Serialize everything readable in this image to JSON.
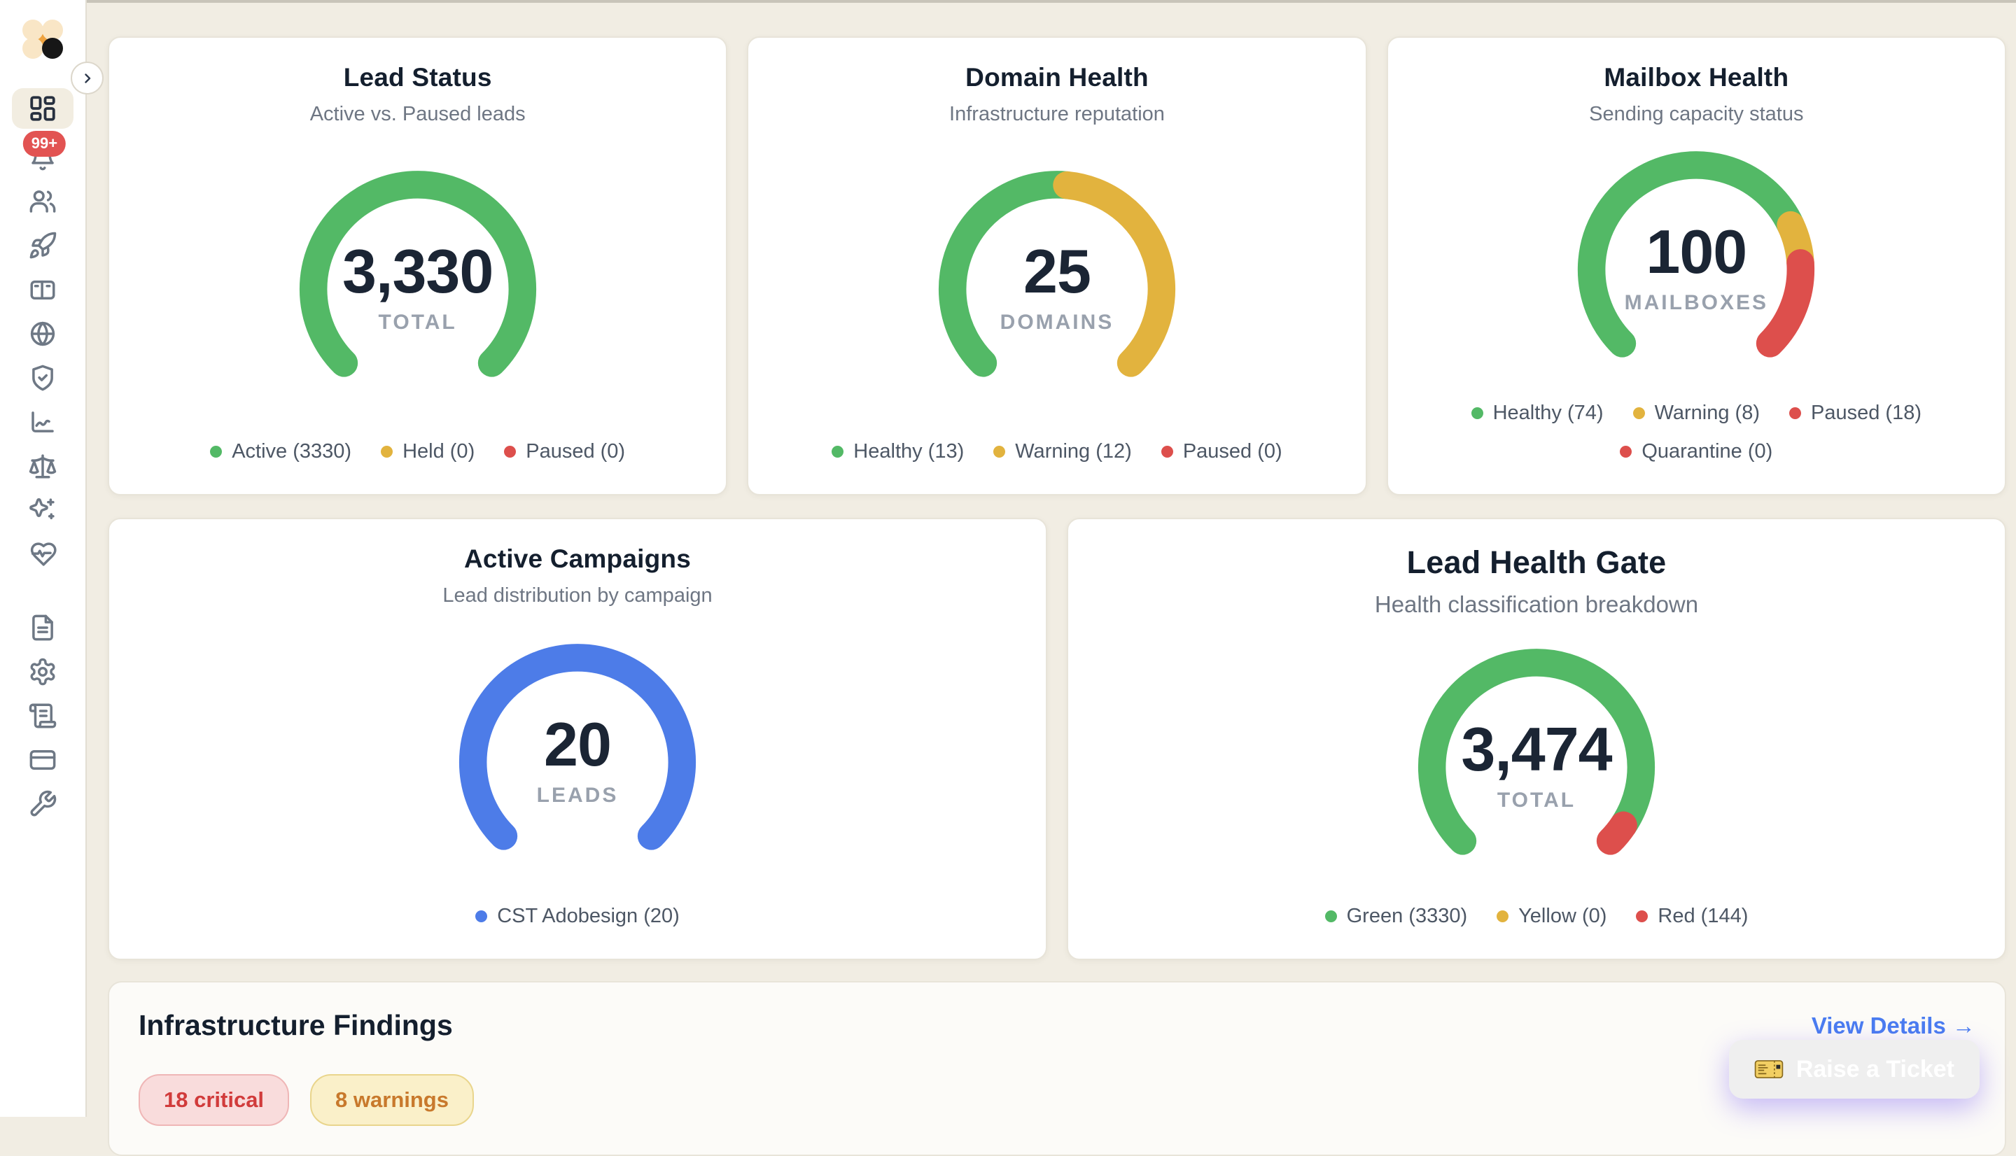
{
  "sidebar": {
    "notification_badge": "99+",
    "items": [
      {
        "id": "dashboard",
        "icon": "dashboard",
        "active": true
      },
      {
        "id": "notifications",
        "icon": "bell",
        "badge": "99+"
      },
      {
        "id": "contacts",
        "icon": "users"
      },
      {
        "id": "campaigns",
        "icon": "rocket"
      },
      {
        "id": "accounts",
        "icon": "notebook"
      },
      {
        "id": "domains",
        "icon": "globe"
      },
      {
        "id": "security",
        "icon": "shield-check"
      },
      {
        "id": "analytics",
        "icon": "chart-line"
      },
      {
        "id": "compliance",
        "icon": "scale"
      },
      {
        "id": "ai-tools",
        "icon": "sparkles"
      },
      {
        "id": "health",
        "icon": "heart-pulse"
      },
      {
        "id": "documents",
        "icon": "file-text",
        "group_gap": true
      },
      {
        "id": "settings",
        "icon": "gear"
      },
      {
        "id": "invoices",
        "icon": "scroll-text"
      },
      {
        "id": "billing",
        "icon": "credit-card"
      },
      {
        "id": "tools",
        "icon": "wrench"
      }
    ]
  },
  "cards": [
    {
      "id": "lead-status",
      "row": 0,
      "title": "Lead Status",
      "subtitle": "Active vs. Paused leads",
      "center_value": "3,330",
      "center_label": "TOTAL",
      "segments": [
        {
          "label": "Active",
          "value": 3330,
          "color": "#53b966"
        },
        {
          "label": "Held",
          "value": 0,
          "color": "#e2b33e"
        },
        {
          "label": "Paused",
          "value": 0,
          "color": "#dd4f4c"
        }
      ],
      "legend": [
        {
          "label": "Active (3330)",
          "color": "#53b966"
        },
        {
          "label": "Held (0)",
          "color": "#e2b33e"
        },
        {
          "label": "Paused (0)",
          "color": "#dd4f4c"
        }
      ]
    },
    {
      "id": "domain-health",
      "row": 0,
      "title": "Domain Health",
      "subtitle": "Infrastructure reputation",
      "center_value": "25",
      "center_label": "DOMAINS",
      "segments": [
        {
          "label": "Healthy",
          "value": 13,
          "color": "#53b966"
        },
        {
          "label": "Warning",
          "value": 12,
          "color": "#e2b33e"
        },
        {
          "label": "Paused",
          "value": 0,
          "color": "#dd4f4c"
        }
      ],
      "legend": [
        {
          "label": "Healthy (13)",
          "color": "#53b966"
        },
        {
          "label": "Warning (12)",
          "color": "#e2b33e"
        },
        {
          "label": "Paused (0)",
          "color": "#dd4f4c"
        }
      ]
    },
    {
      "id": "mailbox-health",
      "row": 0,
      "title": "Mailbox Health",
      "subtitle": "Sending capacity status",
      "center_value": "100",
      "center_label": "MAILBOXES",
      "segments": [
        {
          "label": "Healthy",
          "value": 74,
          "color": "#53b966"
        },
        {
          "label": "Warning",
          "value": 8,
          "color": "#e2b33e"
        },
        {
          "label": "Paused",
          "value": 18,
          "color": "#dd4f4c"
        },
        {
          "label": "Quarantine",
          "value": 0,
          "color": "#dd4f4c"
        }
      ],
      "legend": [
        {
          "label": "Healthy (74)",
          "color": "#53b966"
        },
        {
          "label": "Warning (8)",
          "color": "#e2b33e"
        },
        {
          "label": "Paused (18)",
          "color": "#dd4f4c"
        },
        {
          "label": "Quarantine (0)",
          "color": "#dd4f4c"
        }
      ]
    },
    {
      "id": "active-campaigns",
      "row": 1,
      "title": "Active Campaigns",
      "subtitle": "Lead distribution by campaign",
      "center_value": "20",
      "center_label": "LEADS",
      "segments": [
        {
          "label": "CST Adobesign",
          "value": 20,
          "color": "#4d7ce8"
        }
      ],
      "legend": [
        {
          "label": "CST Adobesign (20)",
          "color": "#4d7ce8"
        }
      ]
    },
    {
      "id": "lead-health-gate",
      "row": 1,
      "title": "Lead Health Gate",
      "subtitle": "Health classification breakdown",
      "center_value": "3,474",
      "center_label": "TOTAL",
      "segments": [
        {
          "label": "Green",
          "value": 3330,
          "color": "#53b966"
        },
        {
          "label": "Yellow",
          "value": 0,
          "color": "#e2b33e"
        },
        {
          "label": "Red",
          "value": 144,
          "color": "#dd4f4c"
        }
      ],
      "legend": [
        {
          "label": "Green (3330)",
          "color": "#53b966"
        },
        {
          "label": "Yellow (0)",
          "color": "#e2b33e"
        },
        {
          "label": "Red (144)",
          "color": "#dd4f4c"
        }
      ]
    }
  ],
  "findings": {
    "title": "Infrastructure Findings",
    "view_details_label": "View Details →",
    "badges": [
      {
        "label": "18 critical",
        "type": "critical"
      },
      {
        "label": "8 warnings",
        "type": "warning"
      }
    ]
  },
  "ticket_button": {
    "label": "Raise a Ticket",
    "icon": "ticket-icon"
  },
  "colors": {
    "green": "#53b966",
    "yellow": "#e2b33e",
    "red": "#dd4f4c",
    "blue": "#4d7ce8",
    "link_blue": "#4a7cf0",
    "accent_purple": "#7559ee",
    "badge_red": "#e25352",
    "background": "#f1ede3"
  }
}
